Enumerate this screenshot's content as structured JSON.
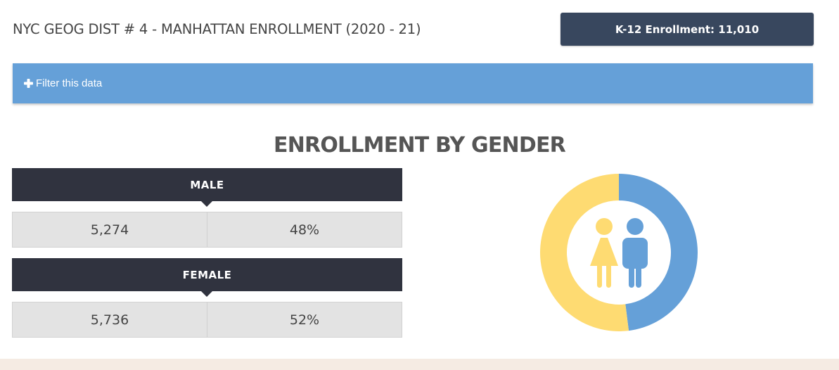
{
  "header": {
    "title": "NYC GEOG DIST # 4 - MANHATTAN ENROLLMENT (2020 - 21)",
    "enrollment_badge": "K-12 Enrollment: 11,010"
  },
  "filter": {
    "label": "Filter this data",
    "icon": "plus-icon"
  },
  "section": {
    "title": "ENROLLMENT BY GENDER"
  },
  "chart_data": {
    "type": "pie",
    "style": "donut",
    "title": "ENROLLMENT BY GENDER",
    "categories": [
      "MALE",
      "FEMALE"
    ],
    "counts": [
      5274,
      5736
    ],
    "count_labels": [
      "5,274",
      "5,736"
    ],
    "values": [
      48,
      52
    ],
    "percent_labels": [
      "48%",
      "52%"
    ],
    "colors": [
      "#65a0d8",
      "#fedb72"
    ],
    "center_icons": [
      "female-figure-icon",
      "male-figure-icon"
    ]
  }
}
